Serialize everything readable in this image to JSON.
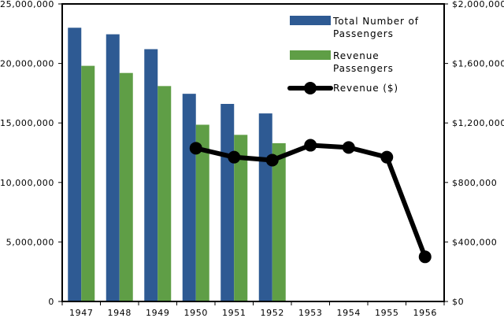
{
  "chart_data": {
    "type": "bar",
    "categories": [
      "1947",
      "1948",
      "1949",
      "1950",
      "1951",
      "1952",
      "1953",
      "1954",
      "1955",
      "1956"
    ],
    "series": [
      {
        "name": "Total Number of Passengers",
        "name_lines": [
          "Total Number of",
          "Passengers"
        ],
        "type": "bar",
        "axis": "left",
        "color": "#2E5A93",
        "values": [
          23000000,
          22450000,
          21200000,
          17450000,
          16600000,
          15800000,
          null,
          null,
          null,
          null
        ]
      },
      {
        "name": "Revenue Passengers",
        "name_lines": [
          "Revenue",
          "Passengers"
        ],
        "type": "bar",
        "axis": "left",
        "color": "#5F9E46",
        "values": [
          19800000,
          19200000,
          18100000,
          14850000,
          14000000,
          13300000,
          null,
          null,
          null,
          null
        ]
      },
      {
        "name": "Revenue ($)",
        "name_lines": [
          "Revenue ($)"
        ],
        "type": "line",
        "axis": "right",
        "color": "#000000",
        "values": [
          null,
          null,
          null,
          1030000,
          970000,
          950000,
          1050000,
          1035000,
          970000,
          300000
        ]
      }
    ],
    "left_axis": {
      "ylim": [
        0,
        25000000
      ],
      "ticks": [
        0,
        5000000,
        10000000,
        15000000,
        20000000,
        25000000
      ],
      "tick_labels": [
        "0",
        "5,000,000",
        "10,000,000",
        "15,000,000",
        "20,000,000",
        "25,000,000"
      ]
    },
    "right_axis": {
      "ylim": [
        0,
        2000000
      ],
      "ticks": [
        0,
        400000,
        800000,
        1200000,
        1600000,
        2000000
      ],
      "tick_labels": [
        "$0",
        "$400,000",
        "$800,000",
        "$1,200,000",
        "$1,600,000",
        "$2,000,000"
      ]
    },
    "title": "",
    "xlabel": "",
    "ylabel": "",
    "grid": false,
    "legend_position": "top-right"
  }
}
